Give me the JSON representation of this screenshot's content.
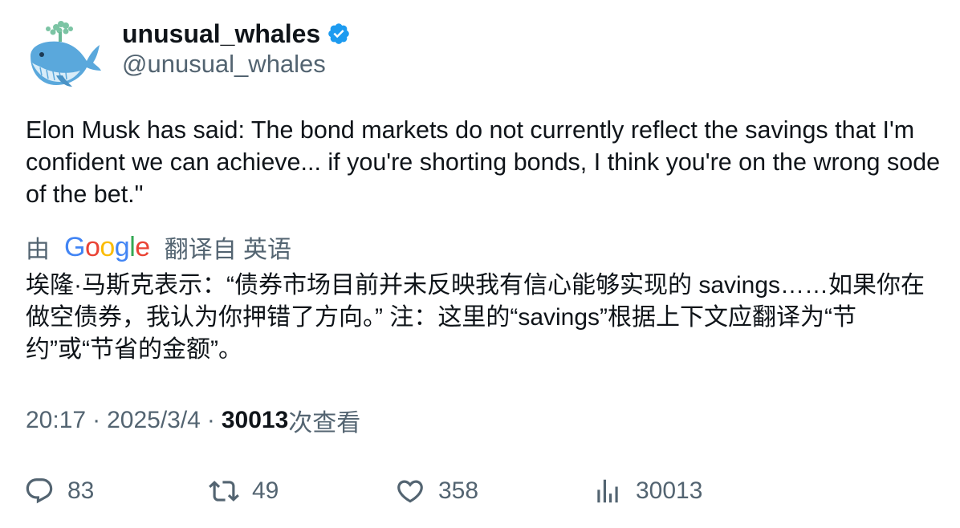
{
  "author": {
    "display_name": "unusual_whales",
    "handle": "@unusual_whales",
    "verified": true,
    "verified_color": "#1d9bf0"
  },
  "tweet": {
    "text": "Elon Musk has said: The bond markets do not currently reflect the savings that I'm confident we can achieve... if you're shorting bonds, I think you're on the wrong sode of the bet.\""
  },
  "translation": {
    "prefix": "由",
    "provider": "Google",
    "suffix": "翻译自 英语",
    "text": "埃隆·马斯克表示：“债券市场目前并未反映我有信心能够实现的 savings……如果你在做空债券，我认为你押错了方向。” 注：这里的“savings”根据上下文应翻译为“节约”或“节省的金额”。"
  },
  "meta": {
    "time": "20:17",
    "date": "2025/3/4",
    "separator": "·",
    "views_count": "30013",
    "views_label": "次查看"
  },
  "actions": {
    "replies": "83",
    "retweets": "49",
    "likes": "358",
    "views": "30013"
  },
  "icons": {
    "reply": "reply-bubble-icon",
    "retweet": "retweet-arrows-icon",
    "like": "heart-icon",
    "views": "bar-chart-icon",
    "verified": "verified-badge-icon"
  }
}
